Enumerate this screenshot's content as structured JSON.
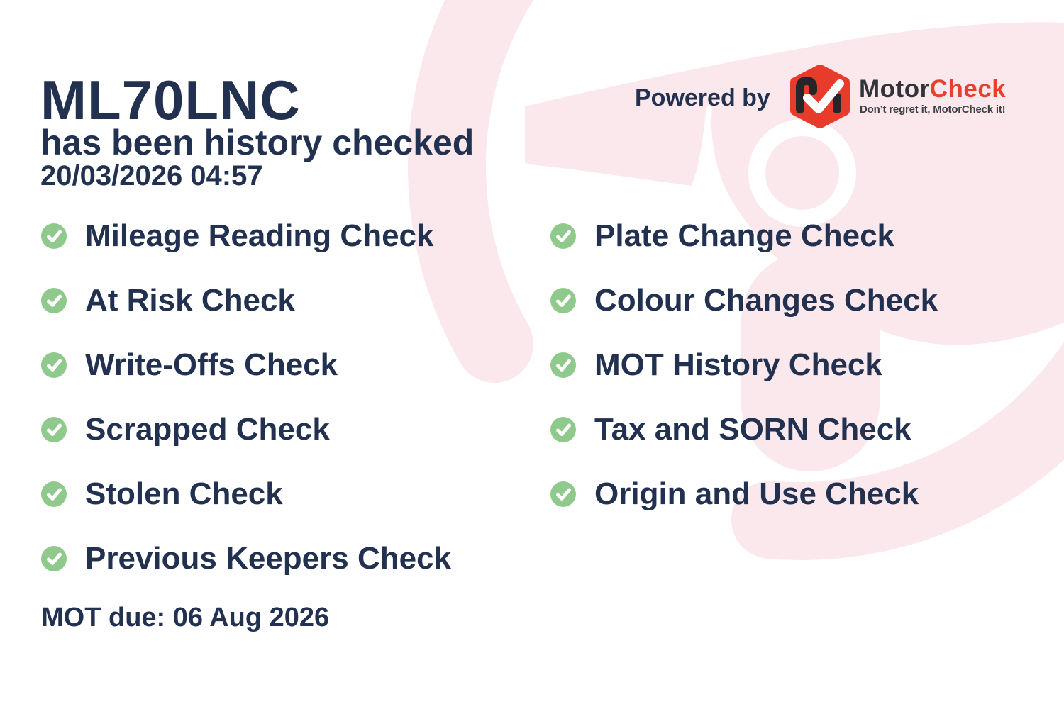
{
  "header": {
    "registration": "ML70LNC",
    "subtitle": "has been history checked",
    "checked_at": "20/03/2026 04:57"
  },
  "branding": {
    "powered_by": "Powered by",
    "brand_name_primary": "Motor",
    "brand_name_secondary": "Check",
    "tagline": "Don’t regret it, MotorCheck it!"
  },
  "checklist": {
    "left": [
      "Mileage Reading Check",
      "At Risk Check",
      "Write-Offs Check",
      "Scrapped Check",
      "Stolen Check",
      "Previous Keepers Check"
    ],
    "right": [
      "Plate Change Check",
      "Colour Changes Check",
      "MOT History Check",
      "Tax and SORN Check",
      "Origin and Use Check"
    ]
  },
  "footer": {
    "mot_due": "MOT due: 06 Aug 2026"
  },
  "colors": {
    "navy_text": "#223150",
    "check_green": "#8fca8c",
    "watermark_pink": "#fae8ed",
    "logo_red": "#e73b2c",
    "brand_red": "#e8402e",
    "brand_charcoal": "#313539"
  }
}
